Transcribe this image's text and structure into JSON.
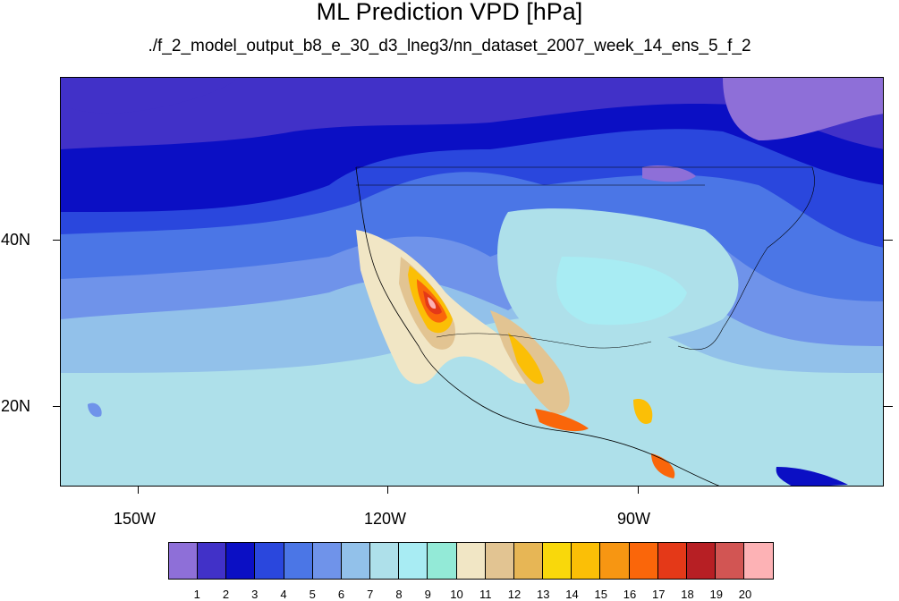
{
  "title": "ML Prediction VPD [hPa]",
  "subtitle": "./f_2_model_output_b8_e_30_d3_lneg3/nn_dataset_2007_week_14_ens_5_f_2",
  "axes": {
    "lon_ticks": [
      "150W",
      "120W",
      "90W"
    ],
    "lat_ticks": [
      "40N",
      "20N"
    ]
  },
  "colorbar": {
    "levels": [
      "1",
      "2",
      "3",
      "4",
      "5",
      "6",
      "7",
      "8",
      "9",
      "10",
      "11",
      "12",
      "13",
      "14",
      "15",
      "16",
      "17",
      "18",
      "19",
      "20"
    ],
    "colors": [
      "#8e6fd8",
      "#4131c8",
      "#0b0fc4",
      "#2a47dd",
      "#4b76e6",
      "#6f93ea",
      "#92c1ea",
      "#aee0ea",
      "#a8ecf3",
      "#93ead7",
      "#f1e6c5",
      "#e2c492",
      "#e7b655",
      "#f9d80b",
      "#fbbf06",
      "#f79612",
      "#fa660a",
      "#e43918",
      "#b71f24",
      "#d25553",
      "#fdb2b5"
    ]
  },
  "chart_data": {
    "type": "heatmap",
    "title": "ML Prediction VPD [hPa]",
    "subtitle": "./f_2_model_output_b8_e_30_d3_lneg3/nn_dataset_2007_week_14_ens_5_f_2",
    "variable": "VPD",
    "units": "hPa",
    "contour_levels": [
      1,
      2,
      3,
      4,
      5,
      6,
      7,
      8,
      9,
      10,
      11,
      12,
      13,
      14,
      15,
      16,
      17,
      18,
      19,
      20
    ],
    "x_ticks": [
      "150W",
      "120W",
      "90W"
    ],
    "y_ticks": [
      "40N",
      "20N"
    ]
  }
}
